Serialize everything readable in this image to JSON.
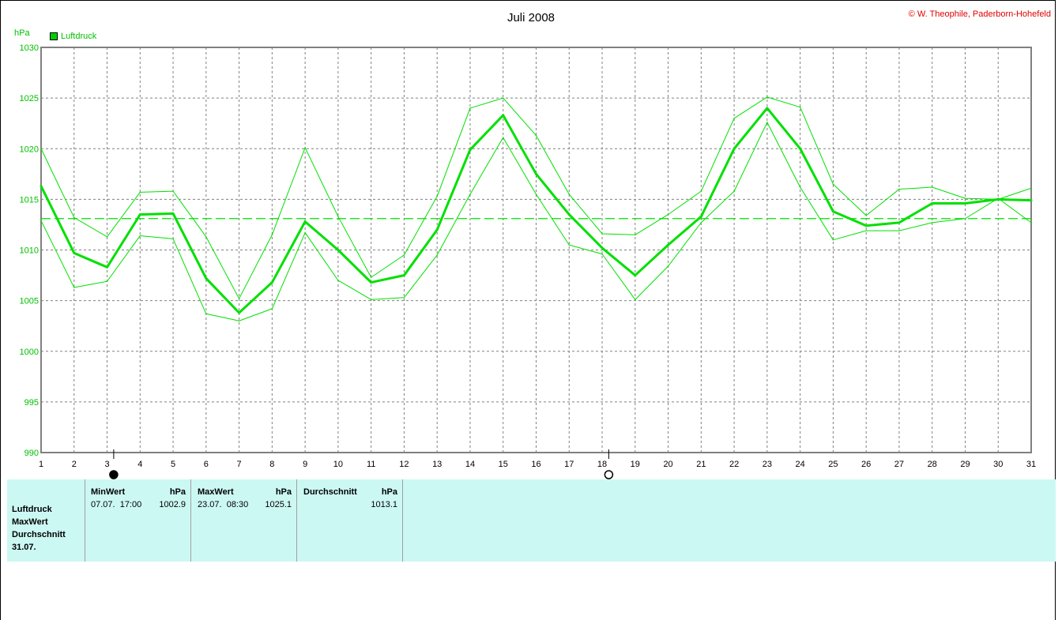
{
  "header": {
    "title": "Juli 2008",
    "copyright": "© W. Theophile, Paderborn-Hohefeld",
    "unit": "hPa",
    "legend_label": "Luftdruck"
  },
  "colors": {
    "series": "#00e000",
    "mean_line": "#00e000",
    "grid": "#808080",
    "stats_bg": "#ccf8f4"
  },
  "chart_data": {
    "type": "line",
    "title": "Juli 2008",
    "ylabel": "hPa",
    "xlabel": "",
    "ylim": [
      990,
      1030
    ],
    "yticks": [
      990,
      995,
      1000,
      1005,
      1010,
      1015,
      1020,
      1025,
      1030
    ],
    "x": [
      1,
      2,
      3,
      4,
      5,
      6,
      7,
      8,
      9,
      10,
      11,
      12,
      13,
      14,
      15,
      16,
      17,
      18,
      19,
      20,
      21,
      22,
      23,
      24,
      25,
      26,
      27,
      28,
      29,
      30,
      31
    ],
    "grid": true,
    "legend_position": "top-left",
    "series": [
      {
        "name": "Luftdruck",
        "role": "mean",
        "values": [
          1016.3,
          1009.7,
          1008.3,
          1013.5,
          1013.6,
          1007.2,
          1003.8,
          1006.8,
          1012.8,
          1010.0,
          1006.8,
          1007.5,
          1012.0,
          1019.9,
          1023.3,
          1017.5,
          1013.5,
          1010.2,
          1007.5,
          1010.5,
          1013.3,
          1020.0,
          1024.0,
          1020.0,
          1013.8,
          1012.4,
          1012.7,
          1014.6,
          1014.6,
          1015.0,
          1014.9
        ]
      },
      {
        "role": "max",
        "values": [
          1020.0,
          1013.2,
          1011.3,
          1015.7,
          1015.8,
          1011.3,
          1005.2,
          1011.5,
          1020.1,
          1013.3,
          1007.3,
          1009.5,
          1015.3,
          1024.0,
          1025.0,
          1021.3,
          1015.5,
          1011.6,
          1011.5,
          1013.5,
          1015.8,
          1023.0,
          1025.1,
          1024.1,
          1016.5,
          1013.4,
          1016.0,
          1016.2,
          1015.1,
          1015.0,
          1016.1
        ]
      },
      {
        "role": "min",
        "values": [
          1012.9,
          1006.3,
          1006.9,
          1011.4,
          1011.1,
          1003.7,
          1003.0,
          1004.2,
          1011.7,
          1007.0,
          1005.1,
          1005.3,
          1009.5,
          1015.5,
          1021.1,
          1015.5,
          1010.5,
          1009.6,
          1005.1,
          1008.4,
          1012.7,
          1015.8,
          1022.6,
          1016.2,
          1011.0,
          1011.9,
          1011.9,
          1012.7,
          1013.1,
          1015.1,
          1012.7
        ]
      }
    ],
    "average_line": 1013.1,
    "moon_phases": [
      {
        "day": 3,
        "phase": "new-moon"
      },
      {
        "day": 18,
        "phase": "full-moon"
      }
    ]
  },
  "stats": {
    "labels": [
      "Luftdruck",
      "MaxWert",
      "Durchschnitt",
      "31.07."
    ],
    "min": {
      "header": "MinWert",
      "unit": "hPa",
      "time": "07.07.  17:00",
      "value": "1002.9"
    },
    "max": {
      "header": "MaxWert",
      "unit": "hPa",
      "time": "23.07.  08:30",
      "value": "1025.1"
    },
    "avg": {
      "header": "Durchschnitt",
      "unit": "hPa",
      "value": "1013.1"
    }
  }
}
